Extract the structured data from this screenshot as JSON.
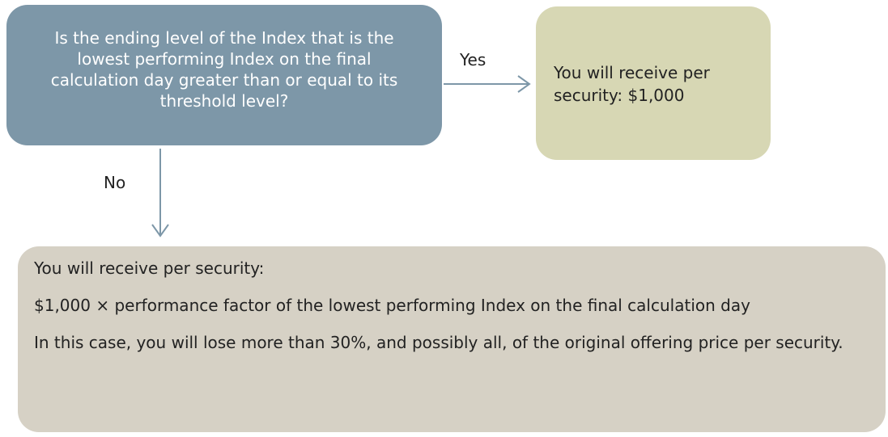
{
  "nodes": [
    {
      "label": "Is the ending level of the Index that is the lowest performing Index on the final calculation day greater than or equal to its threshold level?"
    },
    {
      "label": "You will receive per security: $1,000"
    },
    {
      "lines": [
        "You will receive per security:",
        "$1,000 × performance factor of the lowest performing Index on the final calculation day",
        "In this case, you will lose more than 30%, and possibly all, of the original offering price per security."
      ]
    }
  ],
  "edges": [
    {
      "label": "Yes"
    },
    {
      "label": "No"
    }
  ]
}
